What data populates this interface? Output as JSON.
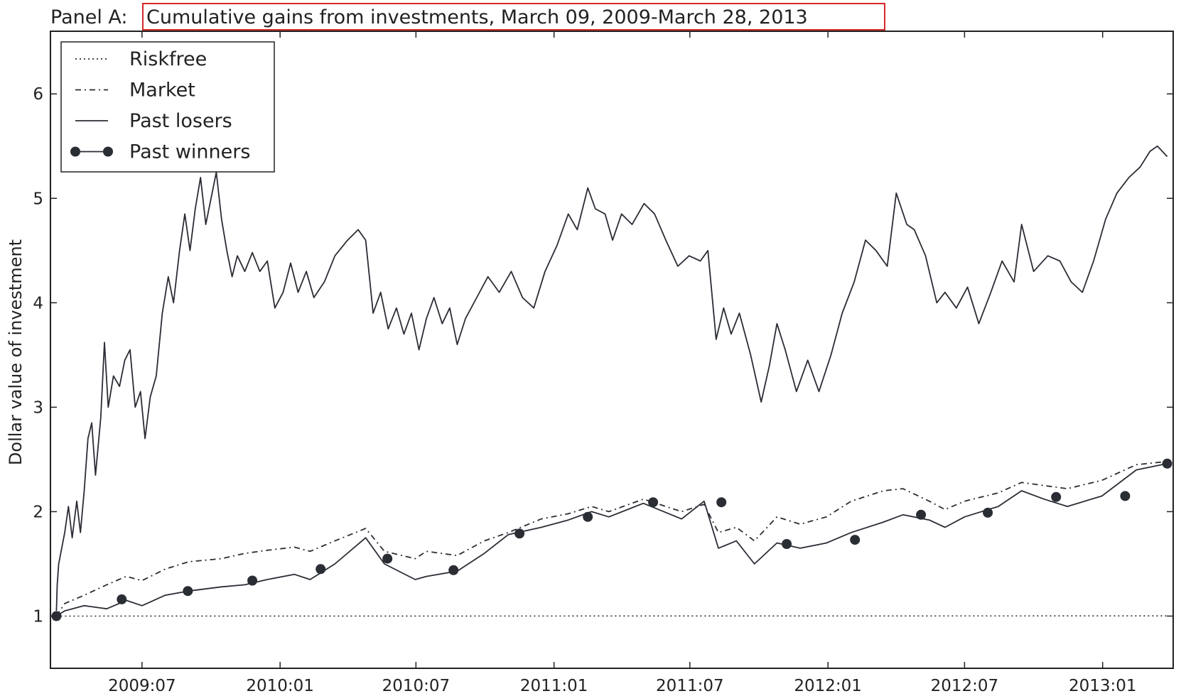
{
  "page": {
    "title_prefix": "Panel A: ",
    "title_main": "Cumulative gains from investments, March 09, 2009-March 28, 2013"
  },
  "colors": {
    "line": "#2b2d35",
    "highlight_box": "#d62728",
    "background": "#ffffff"
  },
  "chart_data": {
    "type": "line",
    "title": "Panel A: Cumulative gains from investments, March 09, 2009-March 28, 2013",
    "xlabel": "",
    "ylabel": "Dollar value of investment",
    "xlim": [
      "2009-03-01",
      "2013-04-05"
    ],
    "ylim": [
      0.5,
      6.6
    ],
    "xticks": [
      {
        "date": "2009-07-01",
        "label": "2009:07"
      },
      {
        "date": "2010-01-01",
        "label": "2010:01"
      },
      {
        "date": "2010-07-01",
        "label": "2010:07"
      },
      {
        "date": "2011-01-01",
        "label": "2011:01"
      },
      {
        "date": "2011-07-01",
        "label": "2011:07"
      },
      {
        "date": "2012-01-01",
        "label": "2012:01"
      },
      {
        "date": "2012-07-01",
        "label": "2012:07"
      },
      {
        "date": "2013-01-01",
        "label": "2013:01"
      }
    ],
    "yticks": [
      1,
      2,
      3,
      4,
      5,
      6
    ],
    "grid": false,
    "legend_position": "top-left",
    "series": [
      {
        "name": "Riskfree",
        "style": "dotted",
        "points": [
          [
            "2009-03-09",
            1.0
          ],
          [
            "2013-03-28",
            1.002
          ]
        ]
      },
      {
        "name": "Market",
        "style": "dashdot",
        "points": [
          [
            "2009-03-09",
            1.0
          ],
          [
            "2009-03-20",
            1.12
          ],
          [
            "2009-04-15",
            1.2
          ],
          [
            "2009-05-15",
            1.3
          ],
          [
            "2009-06-10",
            1.38
          ],
          [
            "2009-07-01",
            1.34
          ],
          [
            "2009-08-01",
            1.45
          ],
          [
            "2009-09-01",
            1.52
          ],
          [
            "2009-10-15",
            1.55
          ],
          [
            "2009-11-15",
            1.6
          ],
          [
            "2009-12-15",
            1.63
          ],
          [
            "2010-01-20",
            1.66
          ],
          [
            "2010-02-10",
            1.62
          ],
          [
            "2010-03-15",
            1.72
          ],
          [
            "2010-04-25",
            1.84
          ],
          [
            "2010-05-20",
            1.62
          ],
          [
            "2010-06-30",
            1.55
          ],
          [
            "2010-07-15",
            1.62
          ],
          [
            "2010-08-25",
            1.58
          ],
          [
            "2010-09-30",
            1.72
          ],
          [
            "2010-11-01",
            1.8
          ],
          [
            "2010-12-15",
            1.93
          ],
          [
            "2011-01-20",
            1.98
          ],
          [
            "2011-02-20",
            2.05
          ],
          [
            "2011-03-15",
            2.0
          ],
          [
            "2011-04-30",
            2.12
          ],
          [
            "2011-06-20",
            2.0
          ],
          [
            "2011-07-20",
            2.07
          ],
          [
            "2011-08-08",
            1.8
          ],
          [
            "2011-09-01",
            1.85
          ],
          [
            "2011-09-25",
            1.72
          ],
          [
            "2011-10-25",
            1.95
          ],
          [
            "2011-11-25",
            1.88
          ],
          [
            "2011-12-30",
            1.95
          ],
          [
            "2012-02-01",
            2.1
          ],
          [
            "2012-03-15",
            2.2
          ],
          [
            "2012-04-10",
            2.22
          ],
          [
            "2012-05-15",
            2.1
          ],
          [
            "2012-06-05",
            2.02
          ],
          [
            "2012-07-01",
            2.1
          ],
          [
            "2012-08-15",
            2.18
          ],
          [
            "2012-09-15",
            2.28
          ],
          [
            "2012-10-15",
            2.25
          ],
          [
            "2012-11-15",
            2.22
          ],
          [
            "2012-12-31",
            2.3
          ],
          [
            "2013-02-15",
            2.45
          ],
          [
            "2013-03-28",
            2.48
          ]
        ]
      },
      {
        "name": "Past losers",
        "style": "solid",
        "points": [
          [
            "2009-03-09",
            1.05
          ],
          [
            "2009-03-10",
            1.3
          ],
          [
            "2009-03-12",
            1.5
          ],
          [
            "2009-03-20",
            1.8
          ],
          [
            "2009-03-25",
            2.05
          ],
          [
            "2009-03-30",
            1.75
          ],
          [
            "2009-04-05",
            2.1
          ],
          [
            "2009-04-10",
            1.8
          ],
          [
            "2009-04-15",
            2.2
          ],
          [
            "2009-04-20",
            2.7
          ],
          [
            "2009-04-25",
            2.85
          ],
          [
            "2009-04-30",
            2.35
          ],
          [
            "2009-05-07",
            2.9
          ],
          [
            "2009-05-12",
            3.62
          ],
          [
            "2009-05-17",
            3.0
          ],
          [
            "2009-05-24",
            3.3
          ],
          [
            "2009-06-01",
            3.2
          ],
          [
            "2009-06-08",
            3.45
          ],
          [
            "2009-06-15",
            3.55
          ],
          [
            "2009-06-22",
            3.0
          ],
          [
            "2009-06-29",
            3.15
          ],
          [
            "2009-07-05",
            2.7
          ],
          [
            "2009-07-12",
            3.1
          ],
          [
            "2009-07-20",
            3.3
          ],
          [
            "2009-07-28",
            3.9
          ],
          [
            "2009-08-05",
            4.25
          ],
          [
            "2009-08-12",
            4.0
          ],
          [
            "2009-08-20",
            4.5
          ],
          [
            "2009-08-27",
            4.85
          ],
          [
            "2009-09-03",
            4.5
          ],
          [
            "2009-09-10",
            4.9
          ],
          [
            "2009-09-17",
            5.2
          ],
          [
            "2009-09-24",
            4.75
          ],
          [
            "2009-10-01",
            5.0
          ],
          [
            "2009-10-08",
            5.25
          ],
          [
            "2009-10-15",
            4.8
          ],
          [
            "2009-10-22",
            4.5
          ],
          [
            "2009-10-29",
            4.25
          ],
          [
            "2009-11-05",
            4.45
          ],
          [
            "2009-11-15",
            4.3
          ],
          [
            "2009-11-25",
            4.48
          ],
          [
            "2009-12-05",
            4.3
          ],
          [
            "2009-12-15",
            4.4
          ],
          [
            "2009-12-25",
            3.95
          ],
          [
            "2010-01-05",
            4.1
          ],
          [
            "2010-01-15",
            4.38
          ],
          [
            "2010-01-25",
            4.1
          ],
          [
            "2010-02-05",
            4.3
          ],
          [
            "2010-02-15",
            4.05
          ],
          [
            "2010-03-01",
            4.2
          ],
          [
            "2010-03-15",
            4.45
          ],
          [
            "2010-04-01",
            4.6
          ],
          [
            "2010-04-15",
            4.7
          ],
          [
            "2010-04-25",
            4.6
          ],
          [
            "2010-05-05",
            3.9
          ],
          [
            "2010-05-15",
            4.1
          ],
          [
            "2010-05-25",
            3.75
          ],
          [
            "2010-06-05",
            3.95
          ],
          [
            "2010-06-15",
            3.7
          ],
          [
            "2010-06-25",
            3.9
          ],
          [
            "2010-07-05",
            3.55
          ],
          [
            "2010-07-15",
            3.85
          ],
          [
            "2010-07-25",
            4.05
          ],
          [
            "2010-08-05",
            3.8
          ],
          [
            "2010-08-15",
            3.95
          ],
          [
            "2010-08-25",
            3.6
          ],
          [
            "2010-09-05",
            3.85
          ],
          [
            "2010-09-20",
            4.05
          ],
          [
            "2010-10-05",
            4.25
          ],
          [
            "2010-10-20",
            4.1
          ],
          [
            "2010-11-05",
            4.3
          ],
          [
            "2010-11-20",
            4.05
          ],
          [
            "2010-12-05",
            3.95
          ],
          [
            "2010-12-20",
            4.3
          ],
          [
            "2011-01-05",
            4.55
          ],
          [
            "2011-01-20",
            4.85
          ],
          [
            "2011-02-01",
            4.7
          ],
          [
            "2011-02-15",
            5.1
          ],
          [
            "2011-02-25",
            4.9
          ],
          [
            "2011-03-10",
            4.85
          ],
          [
            "2011-03-20",
            4.6
          ],
          [
            "2011-04-01",
            4.85
          ],
          [
            "2011-04-15",
            4.75
          ],
          [
            "2011-05-01",
            4.95
          ],
          [
            "2011-05-15",
            4.85
          ],
          [
            "2011-05-30",
            4.6
          ],
          [
            "2011-06-15",
            4.35
          ],
          [
            "2011-06-30",
            4.45
          ],
          [
            "2011-07-15",
            4.4
          ],
          [
            "2011-07-25",
            4.5
          ],
          [
            "2011-08-05",
            3.65
          ],
          [
            "2011-08-15",
            3.95
          ],
          [
            "2011-08-25",
            3.7
          ],
          [
            "2011-09-05",
            3.9
          ],
          [
            "2011-09-20",
            3.5
          ],
          [
            "2011-10-04",
            3.05
          ],
          [
            "2011-10-15",
            3.4
          ],
          [
            "2011-10-25",
            3.8
          ],
          [
            "2011-11-05",
            3.55
          ],
          [
            "2011-11-20",
            3.15
          ],
          [
            "2011-12-05",
            3.45
          ],
          [
            "2011-12-20",
            3.15
          ],
          [
            "2012-01-05",
            3.5
          ],
          [
            "2012-01-20",
            3.9
          ],
          [
            "2012-02-05",
            4.2
          ],
          [
            "2012-02-20",
            4.6
          ],
          [
            "2012-03-05",
            4.5
          ],
          [
            "2012-03-20",
            4.35
          ],
          [
            "2012-04-01",
            5.05
          ],
          [
            "2012-04-15",
            4.75
          ],
          [
            "2012-04-25",
            4.7
          ],
          [
            "2012-05-10",
            4.45
          ],
          [
            "2012-05-25",
            4.0
          ],
          [
            "2012-06-05",
            4.1
          ],
          [
            "2012-06-20",
            3.95
          ],
          [
            "2012-07-05",
            4.15
          ],
          [
            "2012-07-20",
            3.8
          ],
          [
            "2012-08-05",
            4.1
          ],
          [
            "2012-08-20",
            4.4
          ],
          [
            "2012-09-05",
            4.2
          ],
          [
            "2012-09-15",
            4.75
          ],
          [
            "2012-10-01",
            4.3
          ],
          [
            "2012-10-20",
            4.45
          ],
          [
            "2012-11-05",
            4.4
          ],
          [
            "2012-11-20",
            4.2
          ],
          [
            "2012-12-05",
            4.1
          ],
          [
            "2012-12-20",
            4.4
          ],
          [
            "2013-01-05",
            4.8
          ],
          [
            "2013-01-20",
            5.05
          ],
          [
            "2013-02-05",
            5.2
          ],
          [
            "2013-02-20",
            5.3
          ],
          [
            "2013-03-05",
            5.45
          ],
          [
            "2013-03-15",
            5.5
          ],
          [
            "2013-03-28",
            5.4
          ]
        ]
      },
      {
        "name": "Past winners",
        "style": "solid-markers",
        "points": [
          [
            "2009-03-09",
            1.0
          ],
          [
            "2009-03-20",
            1.05
          ],
          [
            "2009-04-15",
            1.1
          ],
          [
            "2009-05-15",
            1.07
          ],
          [
            "2009-06-10",
            1.15
          ],
          [
            "2009-07-01",
            1.1
          ],
          [
            "2009-08-01",
            1.2
          ],
          [
            "2009-09-01",
            1.24
          ],
          [
            "2009-10-15",
            1.28
          ],
          [
            "2009-11-15",
            1.3
          ],
          [
            "2009-12-15",
            1.35
          ],
          [
            "2010-01-20",
            1.4
          ],
          [
            "2010-02-10",
            1.35
          ],
          [
            "2010-03-15",
            1.5
          ],
          [
            "2010-04-25",
            1.75
          ],
          [
            "2010-05-20",
            1.5
          ],
          [
            "2010-06-30",
            1.35
          ],
          [
            "2010-07-15",
            1.38
          ],
          [
            "2010-08-25",
            1.43
          ],
          [
            "2010-09-30",
            1.6
          ],
          [
            "2010-11-01",
            1.78
          ],
          [
            "2010-12-15",
            1.85
          ],
          [
            "2011-01-20",
            1.92
          ],
          [
            "2011-02-20",
            2.0
          ],
          [
            "2011-03-15",
            1.95
          ],
          [
            "2011-04-30",
            2.08
          ],
          [
            "2011-06-20",
            1.93
          ],
          [
            "2011-07-20",
            2.1
          ],
          [
            "2011-08-08",
            1.65
          ],
          [
            "2011-09-01",
            1.72
          ],
          [
            "2011-09-25",
            1.5
          ],
          [
            "2011-10-25",
            1.7
          ],
          [
            "2011-11-25",
            1.65
          ],
          [
            "2011-12-30",
            1.7
          ],
          [
            "2012-02-01",
            1.8
          ],
          [
            "2012-03-15",
            1.9
          ],
          [
            "2012-04-10",
            1.97
          ],
          [
            "2012-05-15",
            1.92
          ],
          [
            "2012-06-05",
            1.85
          ],
          [
            "2012-07-01",
            1.95
          ],
          [
            "2012-08-15",
            2.05
          ],
          [
            "2012-09-15",
            2.2
          ],
          [
            "2012-10-15",
            2.12
          ],
          [
            "2012-11-15",
            2.05
          ],
          [
            "2012-12-31",
            2.15
          ],
          [
            "2013-02-15",
            2.4
          ],
          [
            "2013-03-28",
            2.46
          ]
        ],
        "markers": [
          [
            "2009-03-09",
            1.0
          ],
          [
            "2009-06-04",
            1.16
          ],
          [
            "2009-08-31",
            1.24
          ],
          [
            "2009-11-25",
            1.34
          ],
          [
            "2010-02-24",
            1.45
          ],
          [
            "2010-05-24",
            1.55
          ],
          [
            "2010-08-20",
            1.44
          ],
          [
            "2010-11-16",
            1.79
          ],
          [
            "2011-02-15",
            1.95
          ],
          [
            "2011-05-13",
            2.09
          ],
          [
            "2011-08-12",
            2.09
          ],
          [
            "2011-11-07",
            1.69
          ],
          [
            "2012-02-06",
            1.73
          ],
          [
            "2012-05-04",
            1.97
          ],
          [
            "2012-08-01",
            1.99
          ],
          [
            "2012-10-31",
            2.14
          ],
          [
            "2013-01-31",
            2.15
          ],
          [
            "2013-03-28",
            2.46
          ]
        ]
      }
    ]
  }
}
